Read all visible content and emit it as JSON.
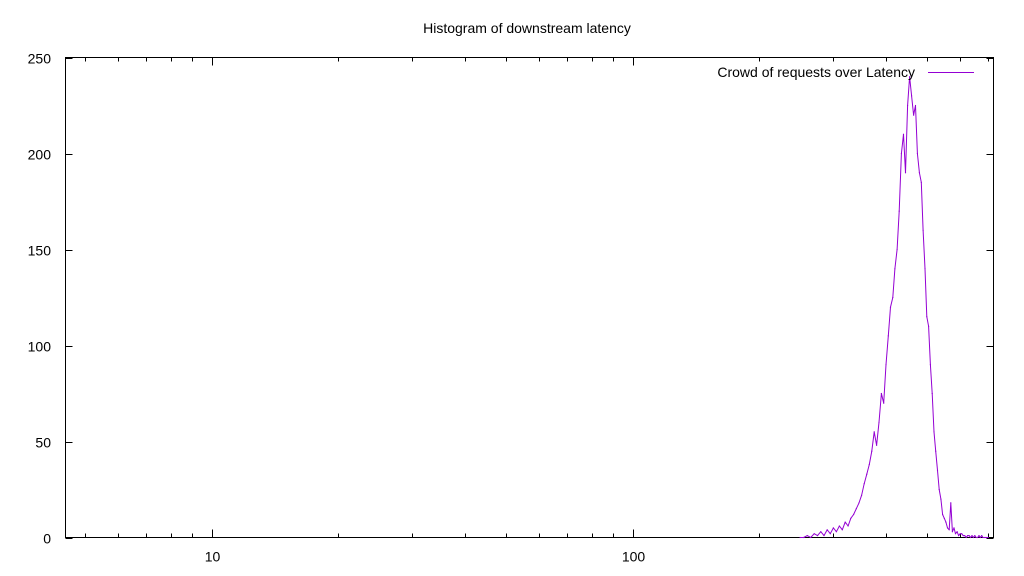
{
  "chart_data": {
    "type": "line",
    "title": "Histogram of downstream latency",
    "xlabel": "",
    "ylabel": "",
    "x_scale": "log",
    "xlim": [
      4.5,
      720
    ],
    "ylim": [
      0,
      250
    ],
    "x_ticks": [
      10,
      100
    ],
    "y_ticks": [
      0,
      50,
      100,
      150,
      200,
      250
    ],
    "grid": false,
    "legend_position": "top-right",
    "series": [
      {
        "name": "Crowd of requests over Latency",
        "color": "#9400d3",
        "x": [
          250,
          255,
          260,
          265,
          270,
          275,
          280,
          285,
          290,
          295,
          300,
          305,
          310,
          315,
          320,
          325,
          330,
          335,
          340,
          345,
          350,
          355,
          360,
          365,
          370,
          375,
          380,
          385,
          390,
          395,
          400,
          405,
          410,
          415,
          420,
          425,
          430,
          435,
          440,
          445,
          450,
          455,
          460,
          465,
          470,
          475,
          480,
          485,
          490,
          495,
          500,
          505,
          510,
          515,
          520,
          525,
          530,
          535,
          540,
          545,
          550,
          555,
          560,
          565,
          570,
          575,
          580,
          585,
          590,
          595,
          600,
          605,
          610,
          615,
          620,
          625,
          630,
          635,
          640,
          645,
          650,
          655,
          660,
          665,
          670,
          675,
          680,
          685,
          690,
          695,
          700
        ],
        "values": [
          0,
          0,
          1,
          0,
          2,
          1,
          3,
          1,
          4,
          2,
          5,
          3,
          6,
          4,
          8,
          6,
          10,
          12,
          15,
          18,
          22,
          28,
          33,
          38,
          45,
          55,
          48,
          60,
          75,
          70,
          90,
          105,
          120,
          125,
          140,
          150,
          170,
          200,
          210,
          190,
          225,
          240,
          230,
          220,
          225,
          200,
          190,
          185,
          160,
          140,
          115,
          110,
          90,
          75,
          55,
          45,
          35,
          25,
          20,
          12,
          10,
          8,
          5,
          4,
          18,
          3,
          5,
          2,
          3,
          1,
          2,
          2,
          1,
          1,
          0,
          1,
          1,
          0,
          1,
          0,
          1,
          0,
          0,
          1,
          0,
          1,
          0,
          0,
          0,
          0,
          0
        ]
      }
    ]
  }
}
